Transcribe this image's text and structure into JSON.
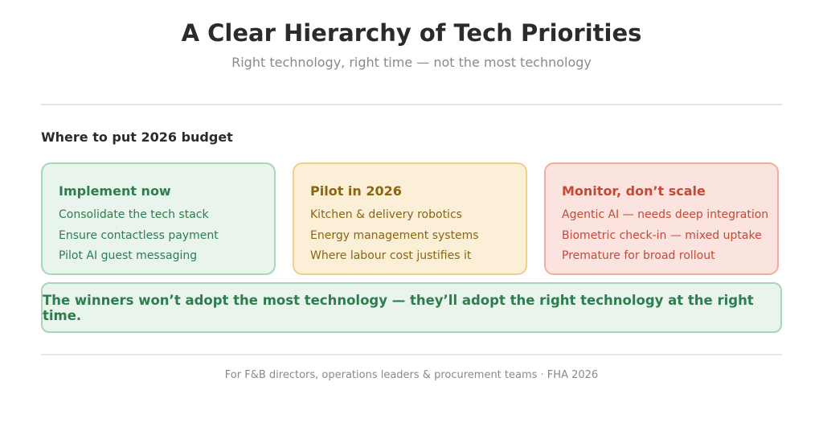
{
  "header": {
    "title": "A Clear Hierarchy of Tech Priorities",
    "subtitle": "Right technology, right time — not the most technology"
  },
  "section_title": "Where to put 2026 budget",
  "cards": [
    {
      "title": "Implement now",
      "items": [
        "Consolidate the tech stack",
        "Ensure contactless payment",
        "Pilot AI guest messaging"
      ]
    },
    {
      "title": "Pilot in 2026",
      "items": [
        "Kitchen & delivery robotics",
        "Energy management systems",
        "Where labour cost justifies it"
      ]
    },
    {
      "title": "Monitor, don’t scale",
      "items": [
        "Agentic AI — needs deep integration",
        "Biometric check-in — mixed uptake",
        "Premature for broad rollout"
      ]
    }
  ],
  "callout": "The winners won’t adopt the most technology — they’ll adopt the right technology at the right time.",
  "footer": "For F&B directors, operations leaders & procurement teams · FHA 2026"
}
